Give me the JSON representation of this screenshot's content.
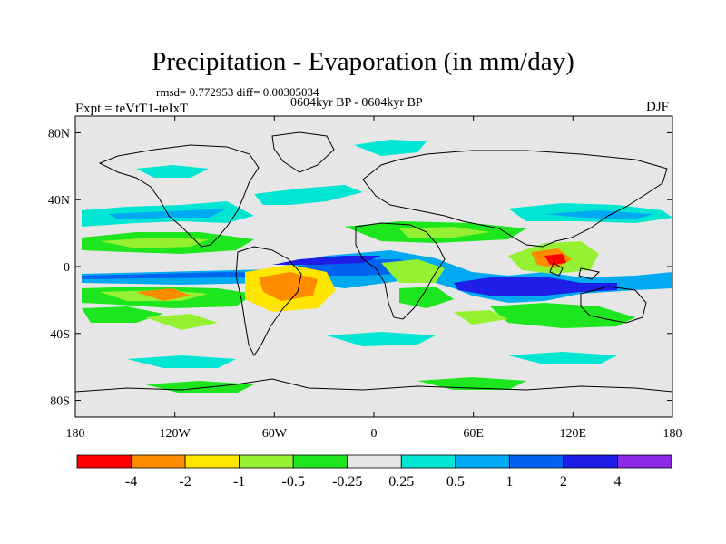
{
  "title": "Precipitation - Evaporation (in mm/day)",
  "stats_line": "rmsd= 0.772953 diff= 0.00305034",
  "period_line": "0604kyr BP - 0604kyr BP",
  "experiment": "Expt = teVtT1-teIxT",
  "season": "DJF",
  "axes": {
    "lat_ticks": [
      {
        "value": 80,
        "label": "80N"
      },
      {
        "value": 40,
        "label": "40N"
      },
      {
        "value": 0,
        "label": "0"
      },
      {
        "value": -40,
        "label": "40S"
      },
      {
        "value": -80,
        "label": "80S"
      }
    ],
    "lon_ticks": [
      {
        "value": -180,
        "label": "180"
      },
      {
        "value": -120,
        "label": "120W"
      },
      {
        "value": -60,
        "label": "60W"
      },
      {
        "value": 0,
        "label": "0"
      },
      {
        "value": 60,
        "label": "60E"
      },
      {
        "value": 120,
        "label": "120E"
      },
      {
        "value": 180,
        "label": "180"
      }
    ]
  },
  "colorbar": {
    "colors": [
      "#ff0000",
      "#ff8c00",
      "#ffe600",
      "#96f032",
      "#1ee61e",
      "#e6e6e6",
      "#00e6d2",
      "#00aaf0",
      "#0064f0",
      "#1e1ee6",
      "#8c28e6"
    ],
    "labels": [
      "-4",
      "-2",
      "-1",
      "-0.5",
      "-0.25",
      "0.25",
      "0.5",
      "1",
      "2",
      "4"
    ]
  },
  "colors": {
    "background_field": "#e6e6e6",
    "coastline": "#000000"
  }
}
